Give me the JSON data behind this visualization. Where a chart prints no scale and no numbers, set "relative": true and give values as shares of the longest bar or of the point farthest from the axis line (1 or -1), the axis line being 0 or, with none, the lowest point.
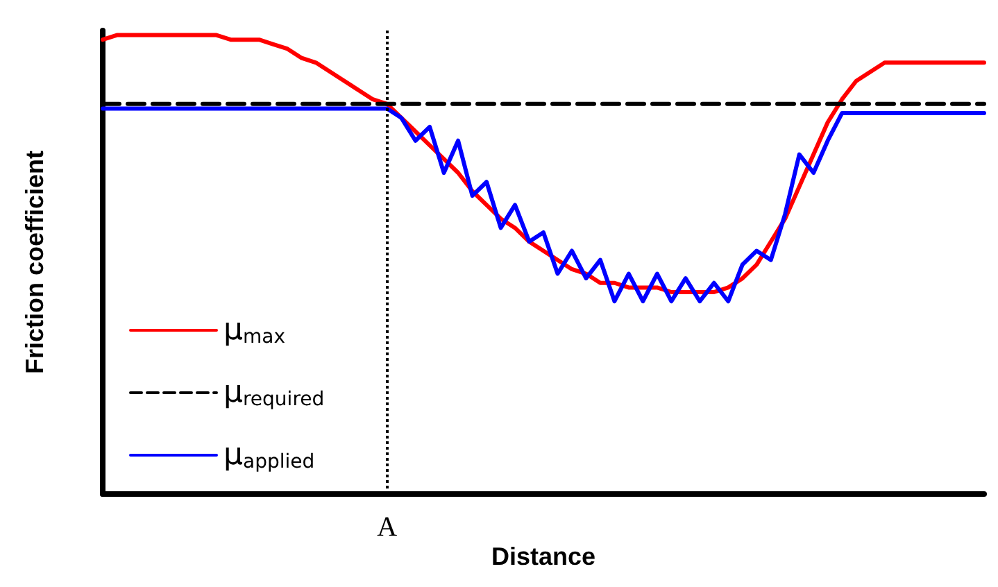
{
  "chart_data": {
    "type": "line",
    "relative": true,
    "xlabel": "Distance",
    "ylabel": "Friction coefficient",
    "categories": [
      null,
      null,
      null,
      null,
      null,
      null,
      null,
      null,
      null,
      null,
      null,
      null,
      null,
      null,
      null,
      null,
      null,
      null,
      null,
      null,
      null,
      null,
      null,
      null,
      null,
      null,
      null,
      null,
      null,
      null,
      null,
      null,
      null,
      null,
      null,
      null,
      null,
      null,
      null,
      null,
      null,
      null,
      null,
      null,
      null,
      null,
      null,
      null,
      null,
      null,
      null,
      null,
      null,
      null,
      null,
      null,
      null,
      null,
      null,
      null,
      null,
      null,
      null
    ],
    "series": [
      {
        "name": "μ$_{max}$",
        "color": "#ff0000",
        "line_style": "solid",
        "values": [
          0.99,
          1.0,
          1.0,
          1.0,
          1.0,
          1.0,
          1.0,
          1.0,
          1.0,
          0.99,
          0.99,
          0.99,
          0.98,
          0.97,
          0.95,
          0.94,
          0.92,
          0.9,
          0.88,
          0.86,
          0.85,
          0.82,
          0.79,
          0.76,
          0.73,
          0.7,
          0.66,
          0.63,
          0.6,
          0.58,
          0.55,
          0.53,
          0.51,
          0.49,
          0.48,
          0.46,
          0.46,
          0.45,
          0.45,
          0.45,
          0.44,
          0.44,
          0.44,
          0.44,
          0.45,
          0.47,
          0.5,
          0.55,
          0.6,
          0.67,
          0.74,
          0.81,
          0.86,
          0.9,
          0.92,
          0.94,
          0.94,
          0.94,
          0.94,
          0.94,
          0.94,
          0.94,
          0.94
        ]
      },
      {
        "name": "μ$_{required}$",
        "color": "#000000",
        "line_style": "dashed",
        "values": [
          0.85,
          0.85,
          0.85,
          0.85,
          0.85,
          0.85,
          0.85,
          0.85,
          0.85,
          0.85,
          0.85,
          0.85,
          0.85,
          0.85,
          0.85,
          0.85,
          0.85,
          0.85,
          0.85,
          0.85,
          0.85,
          0.85,
          0.85,
          0.85,
          0.85,
          0.85,
          0.85,
          0.85,
          0.85,
          0.85,
          0.85,
          0.85,
          0.85,
          0.85,
          0.85,
          0.85,
          0.85,
          0.85,
          0.85,
          0.85,
          0.85,
          0.85,
          0.85,
          0.85,
          0.85,
          0.85,
          0.85,
          0.85,
          0.85,
          0.85,
          0.85,
          0.85,
          0.85,
          0.85,
          0.85,
          0.85,
          0.85,
          0.85,
          0.85,
          0.85,
          0.85,
          0.85,
          0.85
        ]
      },
      {
        "name": "μ$_{applied}$",
        "color": "#0000ff",
        "line_style": "solid",
        "values": [
          0.84,
          0.84,
          0.84,
          0.84,
          0.84,
          0.84,
          0.84,
          0.84,
          0.84,
          0.84,
          0.84,
          0.84,
          0.84,
          0.84,
          0.84,
          0.84,
          0.84,
          0.84,
          0.84,
          0.84,
          0.84,
          0.82,
          0.77,
          0.8,
          0.7,
          0.77,
          0.65,
          0.68,
          0.58,
          0.63,
          0.55,
          0.57,
          0.48,
          0.53,
          0.47,
          0.51,
          0.42,
          0.48,
          0.42,
          0.48,
          0.42,
          0.47,
          0.42,
          0.46,
          0.42,
          0.5,
          0.53,
          0.51,
          0.61,
          0.74,
          0.7,
          0.77,
          0.83,
          0.83,
          0.83,
          0.83,
          0.83,
          0.83,
          0.83,
          0.83,
          0.83,
          0.83,
          0.83
        ]
      }
    ],
    "annotations": [
      "A"
    ],
    "legend": "bottom left",
    "grid": false,
    "marker": "none",
    "tick_labels": false
  }
}
